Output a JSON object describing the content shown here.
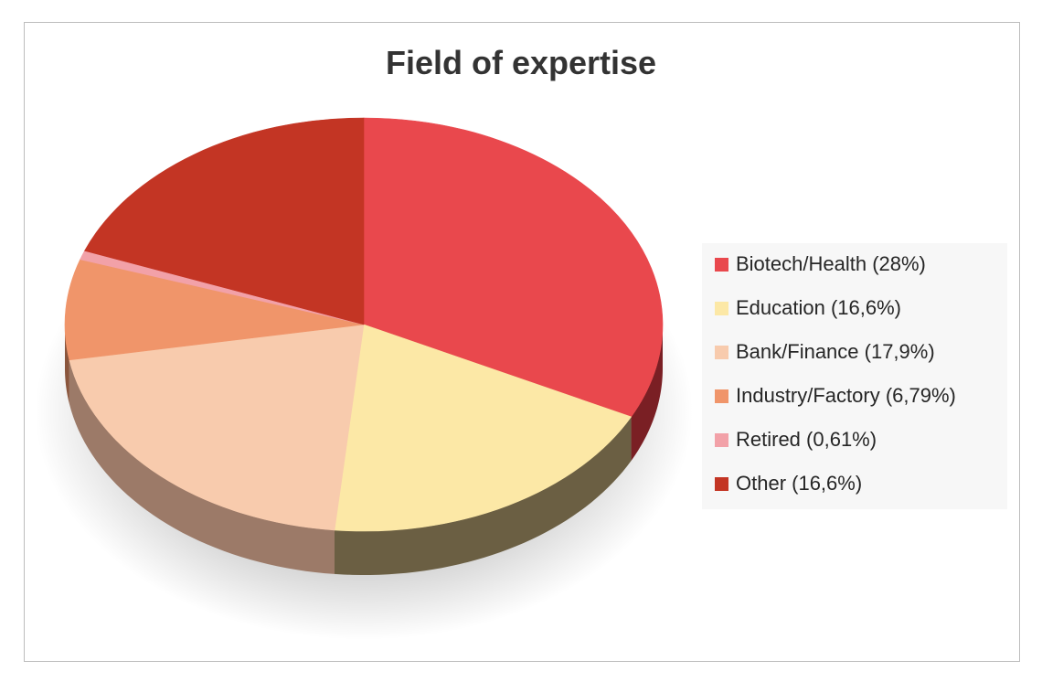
{
  "chart_data": {
    "type": "pie",
    "title": "Field of expertise",
    "legend_position": "right",
    "slices": [
      {
        "label": "Biotech/Health",
        "value": 28,
        "legend_text": "Biotech/Health (28%)",
        "color": "#e9484d",
        "side_color": "#7a1f24"
      },
      {
        "label": "Education",
        "value": 16.6,
        "legend_text": "Education (16,6%)",
        "color": "#fce8a6",
        "side_color": "#6b5f43"
      },
      {
        "label": "Bank/Finance",
        "value": 17.9,
        "legend_text": "Bank/Finance (17,9%)",
        "color": "#f8cbad",
        "side_color": "#9c7a68"
      },
      {
        "label": "Industry/Factory",
        "value": 6.79,
        "legend_text": "Industry/Factory (6,79%)",
        "color": "#f0956a",
        "side_color": "#8a553c"
      },
      {
        "label": "Retired",
        "value": 0.61,
        "legend_text": "Retired (0,61%)",
        "color": "#f2a1a8",
        "side_color": "#8d5a5e"
      },
      {
        "label": "Other",
        "value": 16.6,
        "legend_text": "Other (16,6%)",
        "color": "#c33524",
        "side_color": "#6b1c14"
      }
    ]
  }
}
